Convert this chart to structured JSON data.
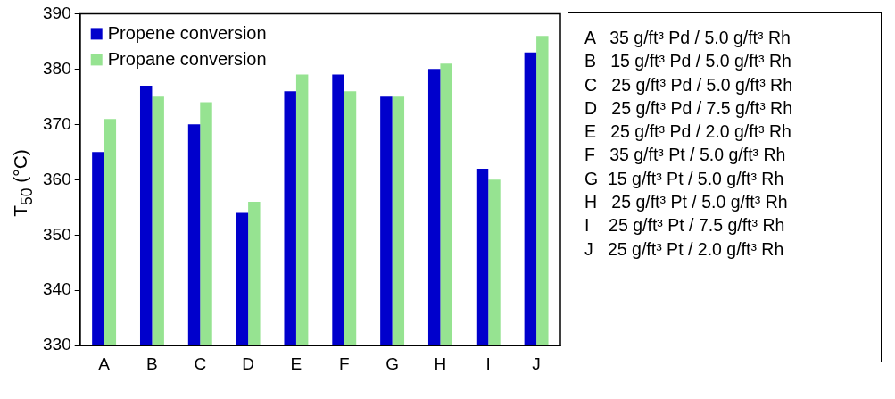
{
  "chart_data": [
    {
      "type": "bar",
      "ylabel": "T$_{50}$ (°C)",
      "categories": [
        "A",
        "B",
        "C",
        "D",
        "E",
        "F",
        "G",
        "H",
        "I",
        "J"
      ],
      "series": [
        {
          "name": "Propene conversion",
          "color": "#0000cc",
          "values": [
            365,
            377,
            370,
            354,
            376,
            379,
            375,
            380,
            362,
            383
          ]
        },
        {
          "name": "Propane conversion",
          "color": "#96e391",
          "values": [
            371,
            375,
            374,
            356,
            379,
            376,
            375,
            381,
            360,
            386
          ]
        }
      ],
      "ylim": [
        330,
        390
      ],
      "yticks": [
        330,
        340,
        350,
        360,
        370,
        380,
        390
      ],
      "grid": false,
      "legend": "top left"
    },
    {
      "type": "other",
      "annotations": [
        "A   35 g/ft³ Pd / 5.0 g/ft³ Rh",
        "B   15 g/ft³ Pd / 5.0 g/ft³ Rh",
        "C   25 g/ft³ Pd / 5.0 g/ft³ Rh",
        "D   25 g/ft³ Pd / 7.5 g/ft³ Rh",
        "E   25 g/ft³ Pd / 2.0 g/ft³ Rh",
        "F   35 g/ft³ Pt / 5.0 g/ft³ Rh",
        "G  15 g/ft³ Pt / 5.0 g/ft³ Rh",
        "H   25 g/ft³ Pt / 5.0 g/ft³ Rh",
        "I    25 g/ft³ Pt / 7.5 g/ft³ Rh",
        "J   25 g/ft³ Pt / 2.0 g/ft³ Rh"
      ]
    }
  ]
}
